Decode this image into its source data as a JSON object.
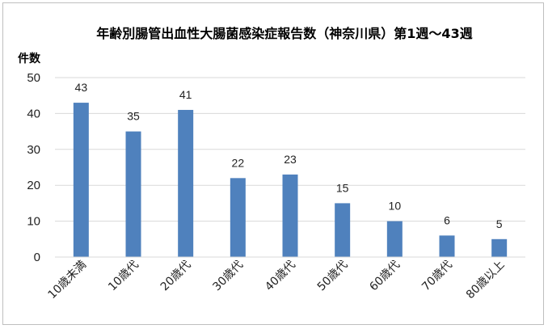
{
  "chart_data": {
    "type": "bar",
    "title": "年齢別腸管出血性大腸菌感染症報告数（神奈川県）第1週～43週",
    "ylabel": "件数",
    "xlabel": "",
    "categories": [
      "10歳未満",
      "10歳代",
      "20歳代",
      "30歳代",
      "40歳代",
      "50歳代",
      "60歳代",
      "70歳代",
      "80歳以上"
    ],
    "values": [
      43,
      35,
      41,
      22,
      23,
      15,
      10,
      6,
      5
    ],
    "ylim": [
      0,
      50
    ],
    "yticks": [
      "0",
      "10",
      "20",
      "30",
      "40",
      "50"
    ],
    "grid": true,
    "legend": "none",
    "bar_color": "#4f81bd",
    "grid_color": "#d9d9d9"
  }
}
